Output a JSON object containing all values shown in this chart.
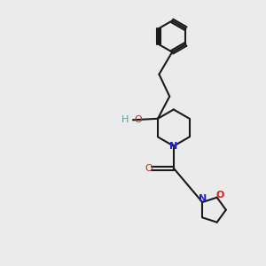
{
  "background_color": "#ebebeb",
  "bond_color": "#1a1a1a",
  "N_color": "#2222cc",
  "O_color": "#cc2222",
  "HO_color": "#44aaaa",
  "lwidth": 1.5,
  "figsize": [
    3.0,
    3.0
  ],
  "dpi": 100,
  "xlim": [
    0,
    10
  ],
  "ylim": [
    0,
    10
  ]
}
